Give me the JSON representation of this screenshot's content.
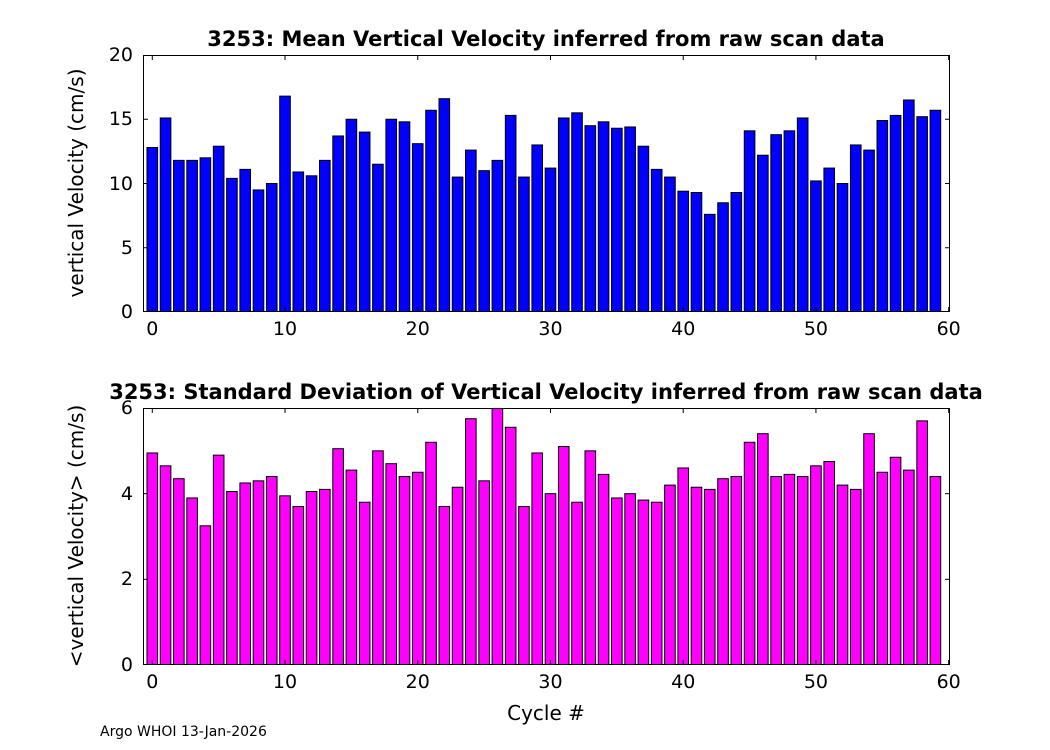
{
  "footer": "Argo WHOI 13-Jan-2026",
  "chart_data": [
    {
      "type": "bar",
      "title": "3253: Mean Vertical Velocity inferred from raw scan data",
      "xlabel": "",
      "ylabel": "vertical Velocity (cm/s)",
      "color": "#0000ff",
      "edge_color": "#000000",
      "bar_width": 0.8,
      "xlim": [
        -0.7,
        60.1
      ],
      "ylim": [
        0,
        20
      ],
      "xticks": [
        0,
        10,
        20,
        30,
        40,
        50,
        60
      ],
      "yticks": [
        0,
        5,
        10,
        15,
        20
      ],
      "x_start": 0,
      "x_step": 1,
      "values": [
        12.8,
        15.1,
        11.8,
        11.8,
        12.0,
        12.9,
        10.4,
        11.1,
        9.5,
        10.0,
        16.8,
        10.9,
        10.6,
        11.8,
        13.7,
        15.0,
        14.0,
        11.5,
        15.0,
        14.8,
        13.1,
        15.7,
        16.6,
        10.5,
        12.6,
        11.0,
        11.8,
        15.3,
        10.5,
        13.0,
        11.2,
        15.1,
        15.5,
        14.5,
        14.8,
        14.3,
        14.4,
        12.9,
        11.1,
        10.5,
        9.4,
        9.3,
        7.6,
        8.5,
        9.3,
        14.1,
        12.2,
        13.8,
        14.1,
        15.1,
        10.2,
        11.2,
        10.0,
        13.0,
        12.6,
        14.9,
        15.3,
        16.5,
        15.2,
        15.7
      ]
    },
    {
      "type": "bar",
      "title": "3253: Standard Deviation of Vertical Velocity inferred from raw scan data",
      "xlabel": "Cycle #",
      "ylabel": "<vertical Velocity> (cm/s)",
      "color": "#ff00ff",
      "edge_color": "#000000",
      "bar_width": 0.8,
      "xlim": [
        -0.7,
        60.1
      ],
      "ylim": [
        0,
        6
      ],
      "xticks": [
        0,
        10,
        20,
        30,
        40,
        50,
        60
      ],
      "yticks": [
        0,
        2,
        4,
        6
      ],
      "x_start": 0,
      "x_step": 1,
      "values": [
        4.95,
        4.65,
        4.35,
        3.9,
        3.25,
        4.9,
        4.05,
        4.25,
        4.3,
        4.4,
        3.95,
        3.7,
        4.05,
        4.1,
        5.05,
        4.55,
        3.8,
        5.0,
        4.7,
        4.4,
        4.5,
        5.2,
        3.7,
        4.15,
        5.75,
        4.3,
        6.0,
        5.55,
        3.7,
        4.95,
        4.0,
        5.1,
        3.8,
        5.0,
        4.45,
        3.9,
        4.0,
        3.85,
        3.8,
        4.2,
        4.6,
        4.15,
        4.1,
        4.35,
        4.4,
        5.2,
        5.4,
        4.4,
        4.45,
        4.4,
        4.65,
        4.75,
        4.2,
        4.1,
        5.4,
        4.5,
        4.85,
        4.55,
        5.7,
        4.4
      ]
    }
  ]
}
